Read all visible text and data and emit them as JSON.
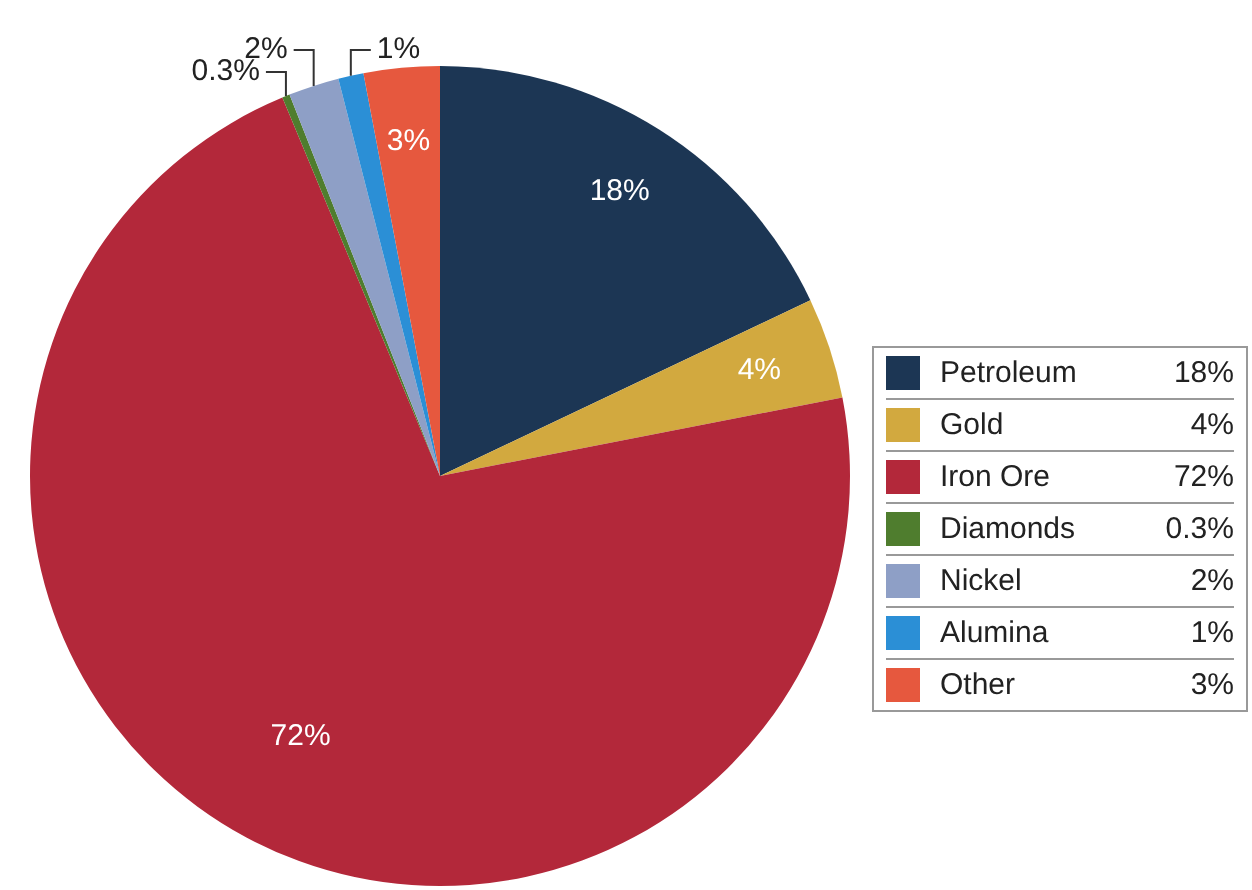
{
  "chart_data": {
    "type": "pie",
    "categories": [
      "Petroleum",
      "Gold",
      "Iron Ore",
      "Diamonds",
      "Nickel",
      "Alumina",
      "Other"
    ],
    "values": [
      18,
      4,
      72,
      0.3,
      2,
      1,
      3
    ],
    "colors": [
      "#1c3654",
      "#d2a93f",
      "#b3283a",
      "#4f7d2e",
      "#8e9fc6",
      "#2b8fd6",
      "#e6583e"
    ],
    "value_labels": [
      "18%",
      "4%",
      "72%",
      "0.3%",
      "2%",
      "1%",
      "3%"
    ],
    "legend": "right"
  }
}
